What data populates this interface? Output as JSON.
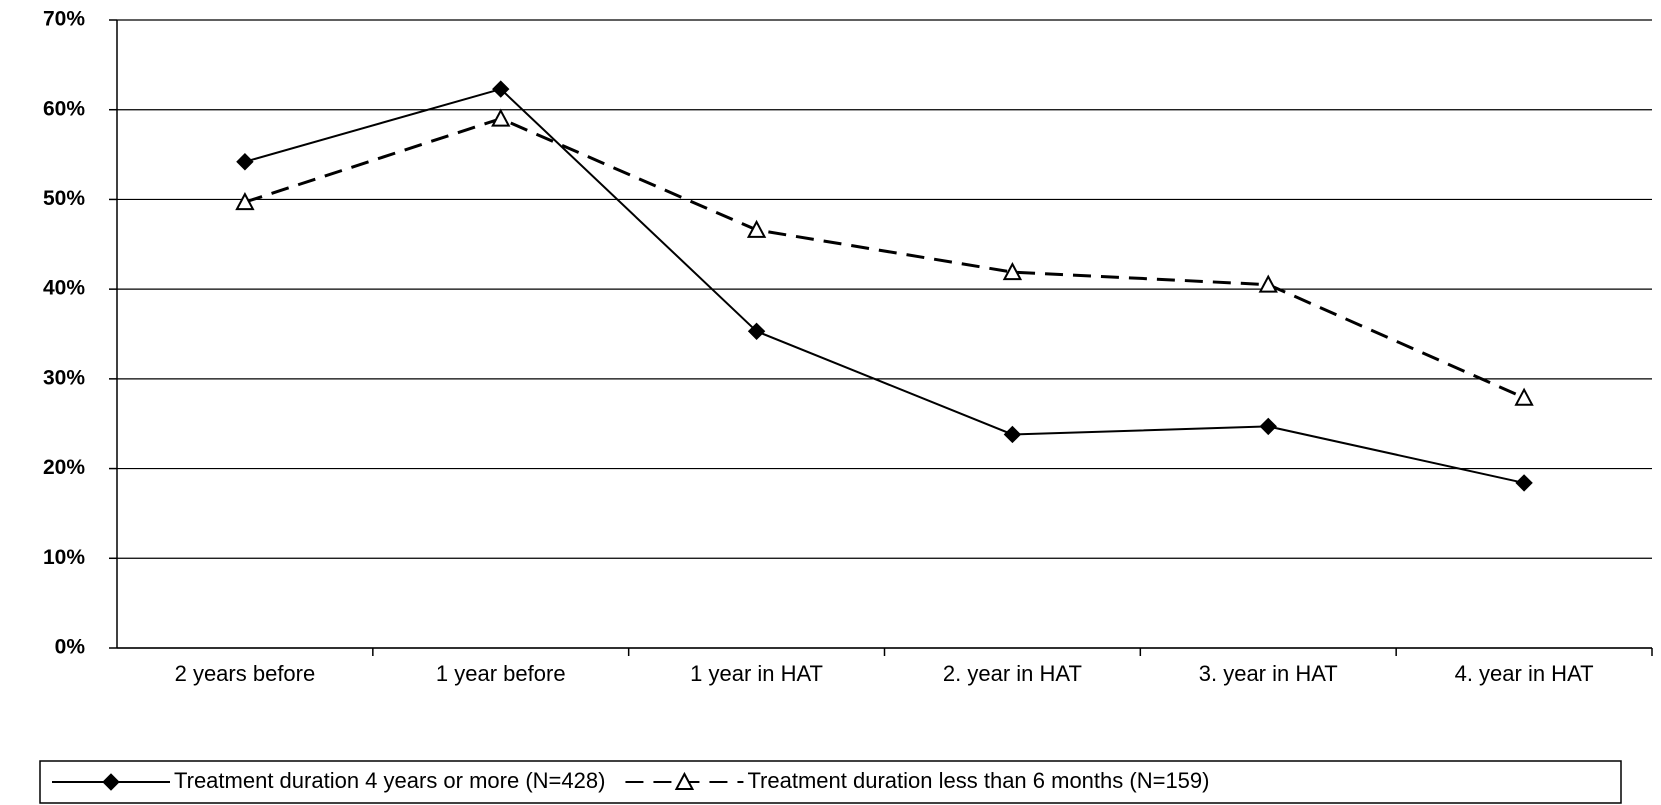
{
  "chart_data": {
    "type": "line",
    "categories": [
      "2 years before",
      "1 year before",
      "1 year in HAT",
      "2. year in HAT",
      "3. year in HAT",
      "4. year in HAT"
    ],
    "series": [
      {
        "name": "Treatment duration 4 years or more (N=428)",
        "color": "#000000",
        "marker": "diamond",
        "dashed": false,
        "values": [
          54.2,
          62.3,
          35.3,
          23.8,
          24.7,
          18.4
        ]
      },
      {
        "name": "Treatment duration less than 6 months (N=159)",
        "color": "#000000",
        "marker": "triangle",
        "dashed": true,
        "values": [
          49.7,
          59.0,
          46.6,
          41.9,
          40.5,
          27.9
        ]
      }
    ],
    "ylim": [
      0,
      70
    ],
    "yticks": [
      {
        "value": 0,
        "label": "0%"
      },
      {
        "value": 10,
        "label": "10%"
      },
      {
        "value": 20,
        "label": "20%"
      },
      {
        "value": 30,
        "label": "30%"
      },
      {
        "value": 40,
        "label": "40%"
      },
      {
        "value": 50,
        "label": "50%"
      },
      {
        "value": 60,
        "label": "60%"
      },
      {
        "value": 70,
        "label": "70%"
      }
    ],
    "grid": true,
    "legend": "bottom"
  }
}
